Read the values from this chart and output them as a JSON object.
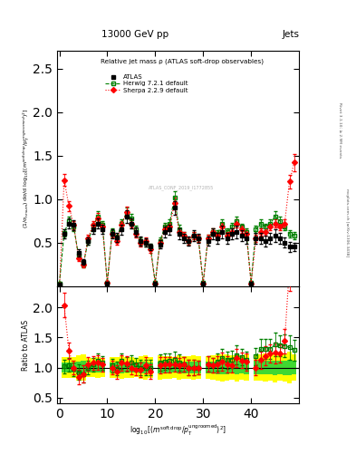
{
  "title_top": "13000 GeV pp",
  "title_right": "Jets",
  "plot_title": "Relative jet mass ρ (ATLAS soft-drop observables)",
  "ylabel_main": "(1/σ$_{resum}$) dσ/d log$_{10}$[(m$^{soft drop}$/p$_T^{ungroomed}$)$^2$]",
  "ylabel_ratio": "Ratio to ATLAS",
  "right_label_top": "Rivet 3.1.10; ≥ 2.9M events",
  "right_label_bot": "mcplots.cern.ch [arXiv:1306.3438]",
  "watermark": "ATLAS_CONF_2019_I1772855",
  "xlim": [
    -0.5,
    50
  ],
  "ylim_main": [
    0,
    2.7
  ],
  "ylim_ratio": [
    0.4,
    2.35
  ],
  "xticks": [
    0,
    10,
    20,
    30,
    40
  ],
  "yticks_main": [
    0.5,
    1.0,
    1.5,
    2.0,
    2.5
  ],
  "yticks_ratio": [
    0.5,
    1.0,
    1.5,
    2.0
  ],
  "atlas_color": "#000000",
  "herwig_color": "#008000",
  "sherpa_color": "#ff0000",
  "band_yellow": "#ffff00",
  "band_green": "#00cc44",
  "atlas_x": [
    0,
    1,
    2,
    3,
    4,
    5,
    6,
    7,
    8,
    9,
    10,
    11,
    12,
    13,
    14,
    15,
    16,
    17,
    18,
    19,
    20,
    21,
    22,
    23,
    24,
    25,
    26,
    27,
    28,
    29,
    30,
    31,
    32,
    33,
    34,
    35,
    36,
    37,
    38,
    39,
    40,
    41,
    42,
    43,
    44,
    45,
    46,
    47,
    48,
    49
  ],
  "atlas_y": [
    0.02,
    0.6,
    0.72,
    0.7,
    0.38,
    0.28,
    0.52,
    0.65,
    0.72,
    0.65,
    0.03,
    0.6,
    0.56,
    0.65,
    0.8,
    0.72,
    0.62,
    0.52,
    0.5,
    0.45,
    0.03,
    0.48,
    0.62,
    0.65,
    0.9,
    0.6,
    0.55,
    0.52,
    0.58,
    0.55,
    0.03,
    0.52,
    0.6,
    0.55,
    0.62,
    0.55,
    0.6,
    0.62,
    0.58,
    0.55,
    0.03,
    0.55,
    0.55,
    0.52,
    0.55,
    0.58,
    0.55,
    0.5,
    0.45,
    0.45
  ],
  "atlas_yerr": [
    0.02,
    0.05,
    0.06,
    0.06,
    0.04,
    0.03,
    0.04,
    0.05,
    0.06,
    0.05,
    0.02,
    0.05,
    0.05,
    0.06,
    0.07,
    0.06,
    0.05,
    0.05,
    0.05,
    0.04,
    0.02,
    0.05,
    0.06,
    0.06,
    0.08,
    0.06,
    0.05,
    0.05,
    0.06,
    0.05,
    0.02,
    0.05,
    0.06,
    0.06,
    0.07,
    0.06,
    0.06,
    0.07,
    0.06,
    0.06,
    0.02,
    0.06,
    0.06,
    0.06,
    0.06,
    0.07,
    0.06,
    0.06,
    0.06,
    0.05
  ],
  "herwig_x": [
    0,
    1,
    2,
    3,
    4,
    5,
    6,
    7,
    8,
    9,
    10,
    11,
    12,
    13,
    14,
    15,
    16,
    17,
    18,
    19,
    20,
    21,
    22,
    23,
    24,
    25,
    26,
    27,
    28,
    29,
    30,
    31,
    32,
    33,
    34,
    35,
    36,
    37,
    38,
    39,
    40,
    41,
    42,
    43,
    44,
    45,
    46,
    47,
    48,
    49
  ],
  "herwig_y": [
    0.03,
    0.61,
    0.75,
    0.68,
    0.35,
    0.25,
    0.52,
    0.68,
    0.8,
    0.7,
    0.04,
    0.62,
    0.55,
    0.72,
    0.84,
    0.78,
    0.65,
    0.52,
    0.5,
    0.45,
    0.04,
    0.52,
    0.68,
    0.72,
    1.02,
    0.65,
    0.58,
    0.52,
    0.58,
    0.55,
    0.04,
    0.55,
    0.62,
    0.6,
    0.72,
    0.62,
    0.68,
    0.75,
    0.68,
    0.62,
    0.04,
    0.65,
    0.72,
    0.68,
    0.72,
    0.8,
    0.75,
    0.68,
    0.6,
    0.58
  ],
  "herwig_yerr": [
    0.02,
    0.04,
    0.05,
    0.05,
    0.03,
    0.03,
    0.04,
    0.05,
    0.06,
    0.05,
    0.02,
    0.04,
    0.04,
    0.05,
    0.06,
    0.05,
    0.04,
    0.04,
    0.04,
    0.04,
    0.02,
    0.04,
    0.05,
    0.05,
    0.07,
    0.05,
    0.04,
    0.04,
    0.04,
    0.04,
    0.02,
    0.04,
    0.04,
    0.04,
    0.05,
    0.04,
    0.05,
    0.05,
    0.04,
    0.04,
    0.02,
    0.04,
    0.05,
    0.04,
    0.05,
    0.06,
    0.05,
    0.04,
    0.04,
    0.04
  ],
  "sherpa_x": [
    0,
    1,
    2,
    3,
    4,
    5,
    6,
    7,
    8,
    9,
    10,
    11,
    12,
    13,
    14,
    15,
    16,
    17,
    18,
    19,
    20,
    21,
    22,
    23,
    24,
    25,
    26,
    27,
    28,
    29,
    30,
    31,
    32,
    33,
    34,
    35,
    36,
    37,
    38,
    39,
    40,
    41,
    42,
    43,
    44,
    45,
    46,
    47,
    48,
    49
  ],
  "sherpa_y": [
    -0.05,
    1.22,
    0.92,
    0.7,
    0.32,
    0.25,
    0.55,
    0.7,
    0.78,
    0.68,
    0.04,
    0.6,
    0.52,
    0.7,
    0.85,
    0.72,
    0.6,
    0.5,
    0.52,
    0.42,
    0.03,
    0.5,
    0.65,
    0.68,
    0.95,
    0.62,
    0.58,
    0.52,
    0.58,
    0.55,
    0.03,
    0.55,
    0.62,
    0.58,
    0.68,
    0.58,
    0.62,
    0.72,
    0.65,
    0.6,
    0.03,
    0.55,
    0.62,
    0.62,
    0.68,
    0.72,
    0.68,
    0.72,
    1.2,
    1.42
  ],
  "sherpa_yerr": [
    0.05,
    0.07,
    0.06,
    0.05,
    0.03,
    0.03,
    0.04,
    0.05,
    0.06,
    0.05,
    0.02,
    0.04,
    0.04,
    0.05,
    0.06,
    0.05,
    0.04,
    0.04,
    0.04,
    0.04,
    0.02,
    0.04,
    0.05,
    0.05,
    0.07,
    0.04,
    0.04,
    0.04,
    0.04,
    0.04,
    0.02,
    0.04,
    0.04,
    0.04,
    0.05,
    0.04,
    0.04,
    0.05,
    0.04,
    0.04,
    0.02,
    0.04,
    0.04,
    0.04,
    0.04,
    0.05,
    0.04,
    0.05,
    0.08,
    0.1
  ]
}
